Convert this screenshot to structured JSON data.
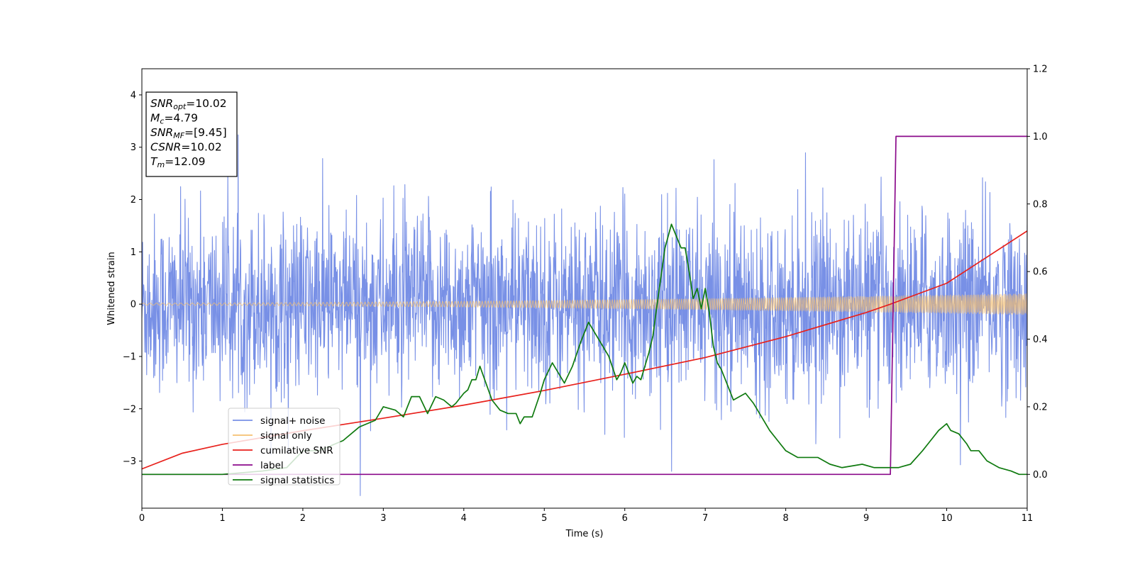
{
  "chart_data": {
    "type": "line",
    "xlabel": "Time (s)",
    "ylabel": "Whitened strain",
    "xlim": [
      0,
      11
    ],
    "ylim": [
      -3.9,
      4.5
    ],
    "ylim_right": [
      -0.1,
      1.2
    ],
    "xticks": [
      "0",
      "1",
      "2",
      "3",
      "4",
      "5",
      "6",
      "7",
      "8",
      "9",
      "10",
      "11"
    ],
    "yticks": [
      "−3",
      "−2",
      "−1",
      "0",
      "1",
      "2",
      "3",
      "4"
    ],
    "yticks_right": [
      "0.0",
      "0.2",
      "0.4",
      "0.6",
      "0.8",
      "1.0",
      "1.2"
    ],
    "grid": false,
    "legend_position": "lower-left",
    "annotation": {
      "lines": [
        {
          "label": "SNR",
          "sub": "opt",
          "value": "=10.02"
        },
        {
          "label": "M",
          "sub": "c",
          "value": "=4.79"
        },
        {
          "label": "SNR",
          "sub": "MF",
          "value": "=[9.45]"
        },
        {
          "label": "CSNR",
          "sub": "",
          "value": "=10.02"
        },
        {
          "label": "T",
          "sub": "m",
          "value": "=12.09"
        }
      ]
    },
    "series": [
      {
        "name": "signal+ noise",
        "color": "#7890e6",
        "axis": "left",
        "kind": "noise",
        "amplitude_sigma": 0.85,
        "typical_range": [
          -2.6,
          2.6
        ]
      },
      {
        "name": "signal only",
        "color": "#f5c070",
        "axis": "left",
        "kind": "chirp",
        "amplitude_envelope": {
          "x": [
            0,
            11
          ],
          "y": [
            0.02,
            0.2
          ]
        }
      },
      {
        "name": "cumilative SNR",
        "color": "#e8211c",
        "axis": "left",
        "x": [
          0,
          0.5,
          1,
          2,
          3,
          4,
          5,
          6,
          7,
          8,
          9,
          9.3,
          10,
          11
        ],
        "y": [
          -3.15,
          -2.85,
          -2.68,
          -2.42,
          -2.18,
          -1.93,
          -1.65,
          -1.34,
          -1.02,
          -0.62,
          -0.16,
          0.0,
          0.4,
          1.4
        ]
      },
      {
        "name": "label",
        "color": "#8b0a8b",
        "axis": "right",
        "x": [
          0,
          9.3,
          9.37,
          11
        ],
        "y": [
          0.0,
          0.0,
          1.0,
          1.0
        ]
      },
      {
        "name": "signal statistics",
        "color": "#0f7a0f",
        "axis": "right",
        "x": [
          0,
          0.3,
          1.0,
          1.5,
          1.8,
          2.0,
          2.2,
          2.5,
          2.7,
          2.8,
          2.9,
          3.0,
          3.15,
          3.25,
          3.35,
          3.45,
          3.55,
          3.65,
          3.75,
          3.85,
          3.9,
          4.0,
          4.05,
          4.1,
          4.15,
          4.2,
          4.35,
          4.45,
          4.55,
          4.65,
          4.7,
          4.75,
          4.85,
          4.95,
          5.0,
          5.1,
          5.2,
          5.25,
          5.35,
          5.45,
          5.5,
          5.55,
          5.65,
          5.8,
          5.9,
          5.95,
          6.0,
          6.1,
          6.15,
          6.2,
          6.3,
          6.35,
          6.4,
          6.5,
          6.58,
          6.7,
          6.75,
          6.8,
          6.85,
          6.9,
          6.95,
          7.0,
          7.05,
          7.1,
          7.15,
          7.2,
          7.3,
          7.35,
          7.5,
          7.6,
          7.7,
          7.8,
          7.9,
          8.0,
          8.15,
          8.3,
          8.4,
          8.55,
          8.7,
          8.95,
          9.1,
          9.3,
          9.4,
          9.55,
          9.7,
          9.8,
          9.9,
          10.0,
          10.05,
          10.15,
          10.25,
          10.3,
          10.4,
          10.5,
          10.65,
          10.8,
          10.9,
          11.0
        ],
        "y": [
          0.0,
          0.0,
          0.0,
          0.01,
          0.02,
          0.07,
          0.07,
          0.1,
          0.14,
          0.15,
          0.16,
          0.2,
          0.19,
          0.17,
          0.23,
          0.23,
          0.18,
          0.23,
          0.22,
          0.2,
          0.21,
          0.24,
          0.25,
          0.28,
          0.28,
          0.32,
          0.22,
          0.19,
          0.18,
          0.18,
          0.15,
          0.17,
          0.17,
          0.24,
          0.28,
          0.33,
          0.29,
          0.27,
          0.32,
          0.39,
          0.42,
          0.45,
          0.41,
          0.35,
          0.28,
          0.3,
          0.33,
          0.27,
          0.29,
          0.28,
          0.36,
          0.41,
          0.5,
          0.67,
          0.74,
          0.67,
          0.67,
          0.6,
          0.52,
          0.55,
          0.49,
          0.55,
          0.48,
          0.38,
          0.33,
          0.31,
          0.25,
          0.22,
          0.24,
          0.21,
          0.17,
          0.13,
          0.1,
          0.07,
          0.05,
          0.05,
          0.05,
          0.03,
          0.02,
          0.03,
          0.02,
          0.02,
          0.02,
          0.03,
          0.07,
          0.1,
          0.13,
          0.15,
          0.13,
          0.12,
          0.09,
          0.07,
          0.07,
          0.04,
          0.02,
          0.01,
          0.0,
          0.0
        ]
      }
    ]
  }
}
